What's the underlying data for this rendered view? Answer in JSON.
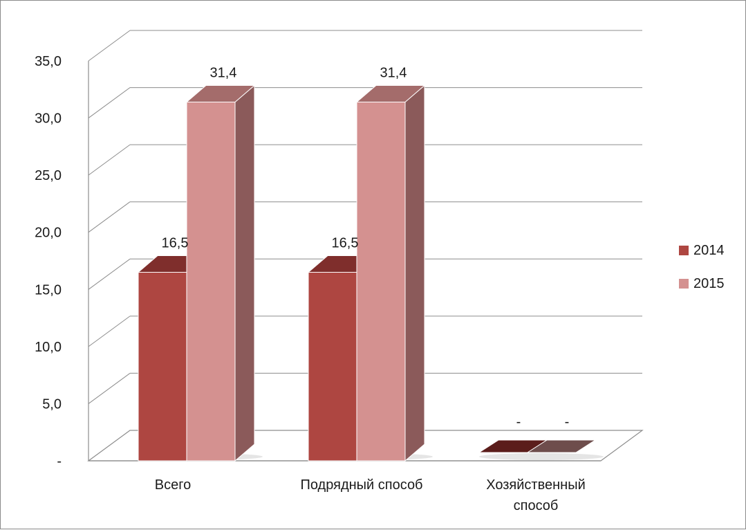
{
  "chart_data": {
    "type": "bar",
    "title": "",
    "xlabel": "",
    "ylabel": "",
    "categories": [
      "Всего",
      "Подрядный способ",
      "Хозяйственный способ"
    ],
    "series": [
      {
        "name": "2014",
        "values": [
          16.5,
          16.5,
          0
        ],
        "value_labels": [
          "16,5",
          "16,5",
          "-"
        ],
        "colors": {
          "front": "#ae4641",
          "top": "#7f2e2c",
          "side": "#6e2826",
          "zero": "#5b1d1b"
        }
      },
      {
        "name": "2015",
        "values": [
          31.4,
          31.4,
          0
        ],
        "value_labels": [
          "31,4",
          "31,4",
          "-"
        ],
        "colors": {
          "front": "#d49190",
          "top": "#a46c6b",
          "side": "#8b5a5a",
          "zero": "#6e4d4c"
        }
      }
    ],
    "ylim": [
      0,
      35
    ],
    "y_ticks": [
      0,
      5,
      10,
      15,
      20,
      25,
      30,
      35
    ],
    "y_tick_labels": [
      "-",
      "5,0",
      "10,0",
      "15,0",
      "20,0",
      "25,0",
      "30,0",
      "35,0"
    ],
    "grid": true,
    "legend_position": "right",
    "projection": "3d-clustered-column"
  }
}
